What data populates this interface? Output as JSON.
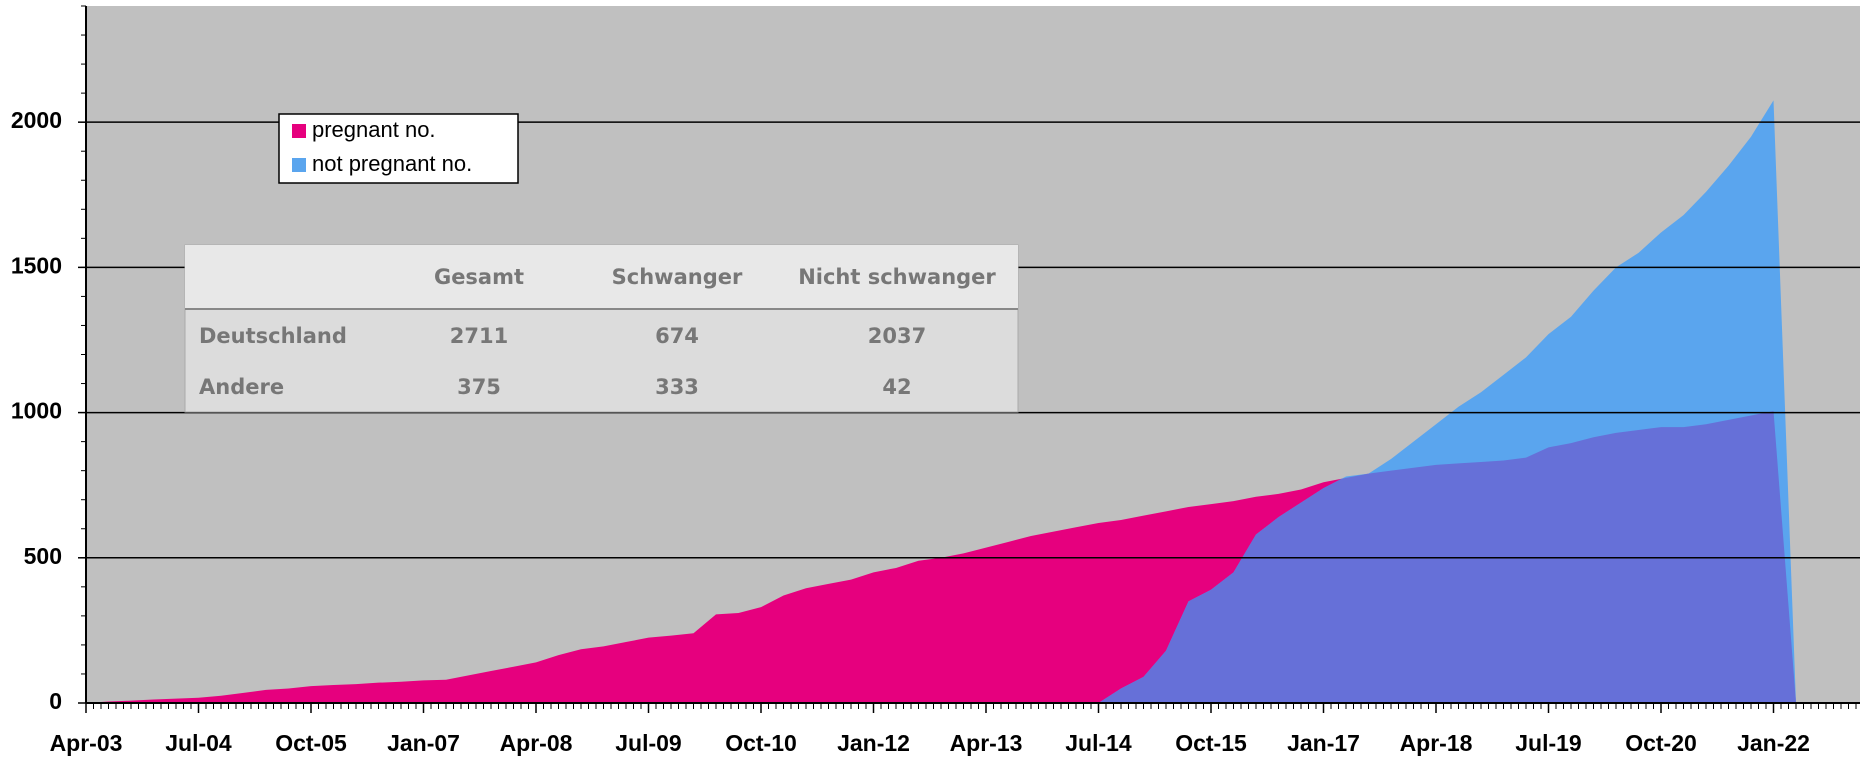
{
  "chart_data": {
    "type": "area",
    "categories": [
      "Apr-03",
      null,
      null,
      null,
      null,
      "Jul-04",
      null,
      null,
      null,
      null,
      "Oct-05",
      null,
      null,
      null,
      null,
      "Jan-07",
      null,
      null,
      null,
      null,
      "Apr-08",
      null,
      null,
      null,
      null,
      "Jul-09",
      null,
      null,
      null,
      null,
      "Oct-10",
      null,
      null,
      null,
      null,
      "Jan-12",
      null,
      null,
      null,
      null,
      "Apr-13",
      null,
      null,
      null,
      null,
      "Jul-14",
      null,
      null,
      null,
      null,
      "Oct-15",
      null,
      null,
      null,
      null,
      "Jan-17",
      null,
      null,
      null,
      null,
      "Apr-18",
      null,
      null,
      null,
      null,
      "Jul-19",
      null,
      null,
      null,
      null,
      "Oct-20",
      null,
      null,
      null,
      null,
      "Jan-22",
      null
    ],
    "series": [
      {
        "name": "pregnant no.",
        "color": "#e6007e",
        "values": [
          0,
          5,
          8,
          12,
          15,
          18,
          25,
          35,
          45,
          50,
          58,
          62,
          65,
          70,
          73,
          78,
          80,
          95,
          110,
          125,
          140,
          165,
          185,
          195,
          210,
          225,
          232,
          240,
          305,
          310,
          330,
          370,
          395,
          410,
          425,
          450,
          465,
          490,
          500,
          515,
          535,
          555,
          575,
          590,
          605,
          620,
          630,
          645,
          660,
          675,
          685,
          695,
          710,
          720,
          735,
          760,
          775,
          790,
          800,
          810,
          820,
          825,
          830,
          835,
          845,
          880,
          895,
          915,
          930,
          940,
          950,
          950,
          960,
          975,
          990,
          1005,
          0
        ]
      },
      {
        "name": "not pregnant no.",
        "color": "#5aa5ee",
        "values": [
          null,
          null,
          null,
          null,
          null,
          null,
          null,
          null,
          null,
          null,
          null,
          null,
          null,
          null,
          null,
          null,
          null,
          null,
          null,
          null,
          null,
          null,
          null,
          null,
          null,
          null,
          null,
          null,
          null,
          null,
          null,
          null,
          null,
          null,
          null,
          null,
          null,
          null,
          null,
          null,
          null,
          null,
          null,
          null,
          null,
          0,
          50,
          90,
          180,
          350,
          390,
          450,
          580,
          640,
          690,
          740,
          780,
          790,
          840,
          900,
          960,
          1020,
          1070,
          1130,
          1190,
          1270,
          1330,
          1420,
          1500,
          1550,
          1620,
          1680,
          1760,
          1850,
          1950,
          2075,
          0
        ]
      }
    ],
    "overlap_color": "#6670d8",
    "ylim": [
      0,
      2400
    ],
    "yticks": [
      0,
      500,
      1000,
      1500,
      2000
    ],
    "grid": true,
    "table": {
      "columns": [
        "Gesamt",
        "Schwanger",
        "Nicht schwanger"
      ],
      "rows": [
        [
          "Deutschland",
          "2711",
          "674",
          "2037"
        ],
        [
          "Andere",
          "375",
          "333",
          "42"
        ]
      ]
    }
  }
}
